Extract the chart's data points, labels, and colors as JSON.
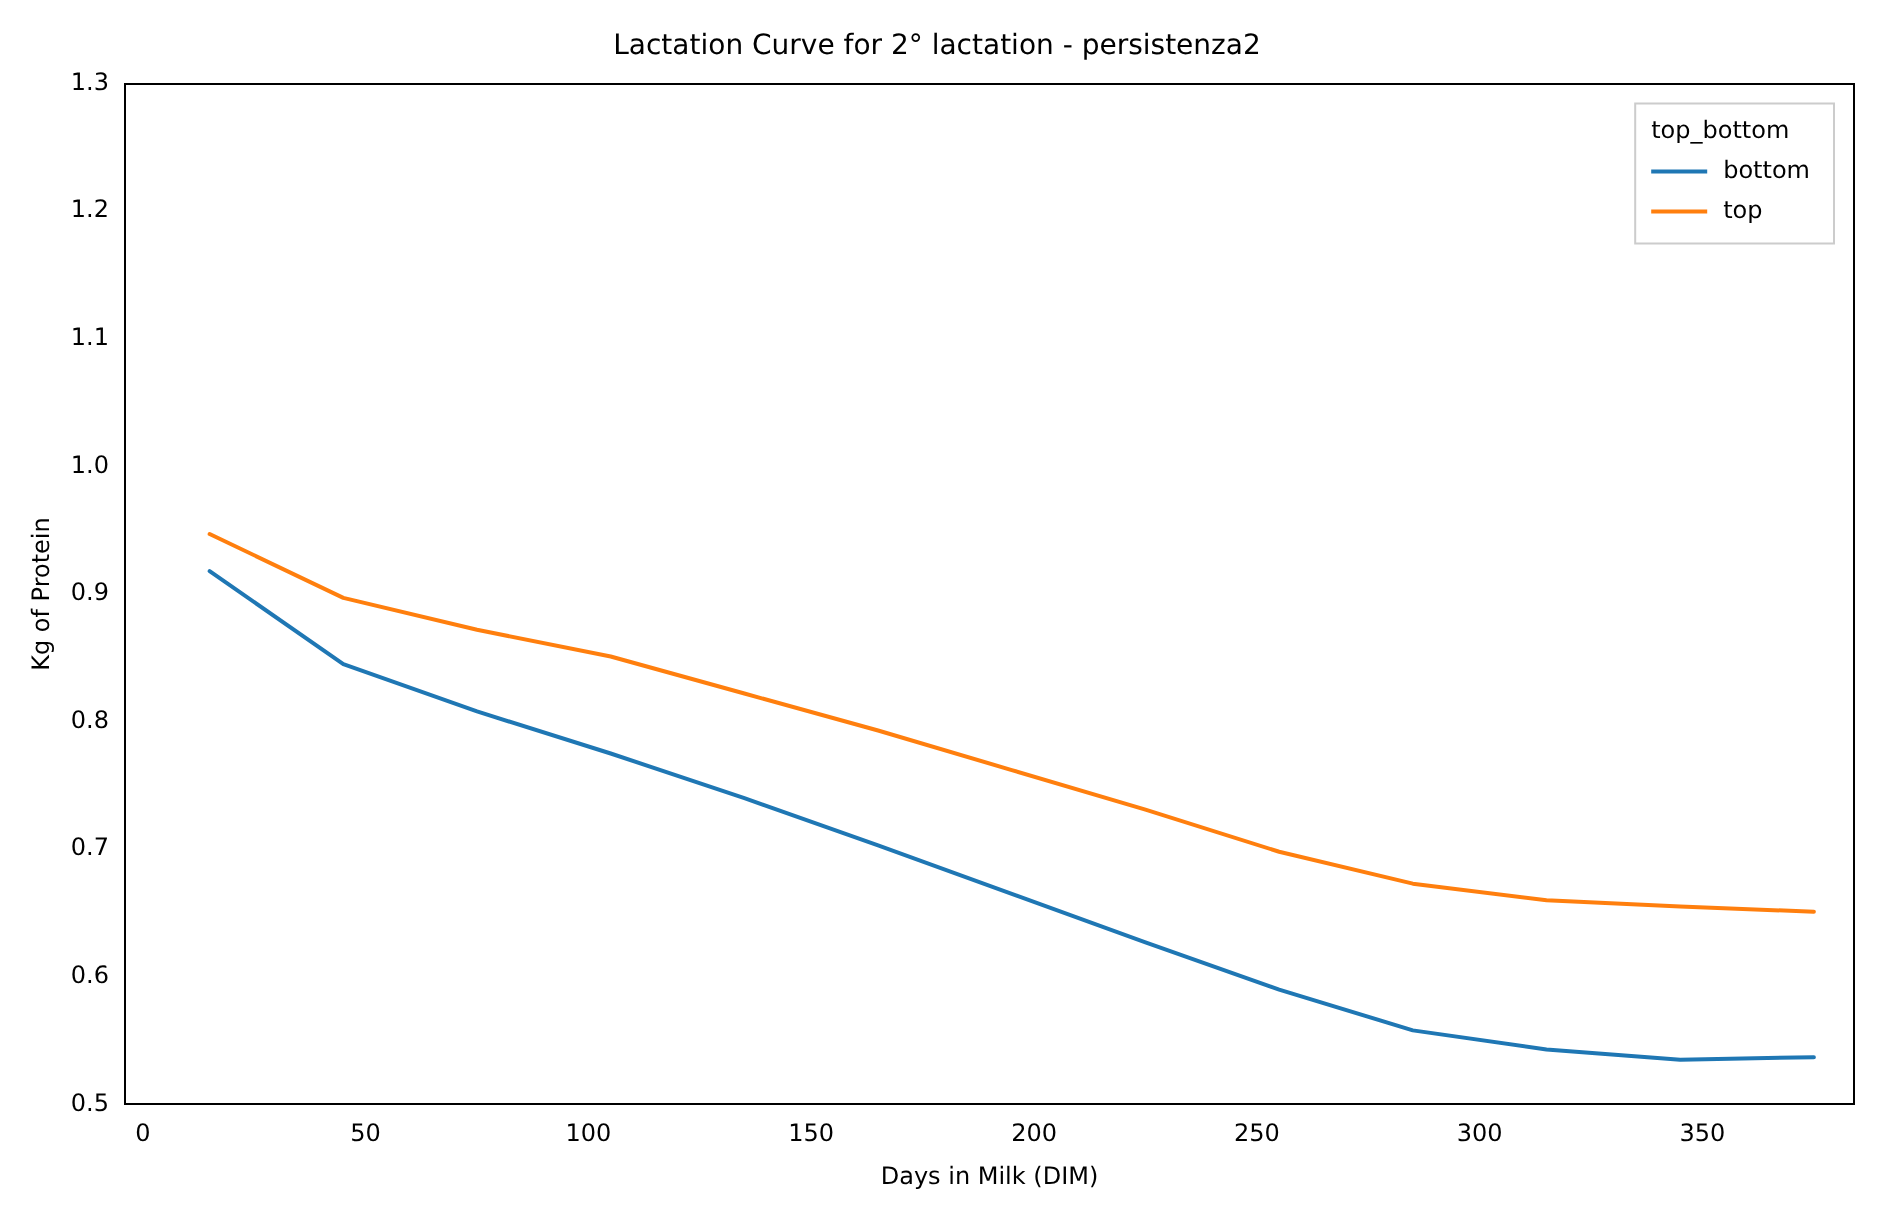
{
  "chart_data": {
    "type": "line",
    "title": "Lactation Curve for 2° lactation - persistenza2",
    "xlabel": "Days in Milk (DIM)",
    "ylabel": "Kg of Protein",
    "legend_title": "top_bottom",
    "legend": "top right",
    "grid": false,
    "x": [
      15,
      45,
      75,
      105,
      135,
      165,
      195,
      225,
      255,
      285,
      315,
      345,
      375
    ],
    "series": [
      {
        "name": "bottom",
        "color": "#1f77b4",
        "values": [
          0.918,
          0.845,
          0.808,
          0.775,
          0.74,
          0.703,
          0.665,
          0.627,
          0.59,
          0.558,
          0.543,
          0.535,
          0.537
        ]
      },
      {
        "name": "top",
        "color": "#ff7f0e",
        "values": [
          0.947,
          0.897,
          0.872,
          0.851,
          0.822,
          0.793,
          0.762,
          0.731,
          0.698,
          0.673,
          0.66,
          0.655,
          0.651
        ]
      }
    ],
    "xlim": [
      -4,
      384
    ],
    "xticks": [
      0,
      50,
      100,
      150,
      200,
      250,
      300,
      350
    ],
    "ylim": [
      0.5,
      1.3
    ],
    "yticks": [
      {
        "value": 0.5,
        "label": "0.5"
      },
      {
        "value": 0.6,
        "label": "0.6"
      },
      {
        "value": 0.7,
        "label": "0.7"
      },
      {
        "value": 0.8,
        "label": "0.8"
      },
      {
        "value": 0.9,
        "label": "0.9"
      },
      {
        "value": 1.0,
        "label": "1.0"
      },
      {
        "value": 1.1,
        "label": "1.1"
      },
      {
        "value": 1.2,
        "label": "1.2"
      },
      {
        "value": 1.3,
        "label": "1.3"
      }
    ]
  }
}
